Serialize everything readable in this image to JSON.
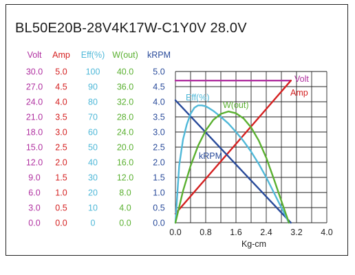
{
  "title": "BL50E20B-28V4K17W-C1Y0V   28.0V",
  "colors": {
    "volt": "#b030a0",
    "amp": "#d42020",
    "eff": "#4fb8d8",
    "wout": "#5ab030",
    "krpm": "#284a9a",
    "grid": "#222222",
    "axis_text": "#222222"
  },
  "chart_data": {
    "type": "line",
    "xlabel": "Kg-cm",
    "xlim": [
      0,
      4.0
    ],
    "x_ticks": [
      "0.0",
      "0.8",
      "1.6",
      "2.4",
      "3.2",
      "4.0"
    ],
    "axes": [
      {
        "name": "Volt",
        "color": "#b030a0",
        "ticks": [
          "0.0",
          "3.0",
          "6.0",
          "9.0",
          "12.0",
          "15.0",
          "18.0",
          "21.0",
          "24.0",
          "27.0",
          "30.0"
        ]
      },
      {
        "name": "Amp",
        "color": "#d42020",
        "ticks": [
          "0.0",
          "0.5",
          "1.0",
          "1.5",
          "2.0",
          "2.5",
          "3.0",
          "3.5",
          "4.0",
          "4.5",
          "5.0"
        ]
      },
      {
        "name": "Eff(%)",
        "color": "#4fb8d8",
        "ticks": [
          "0",
          "10",
          "20",
          "30",
          "40",
          "50",
          "60",
          "70",
          "80",
          "90",
          "100"
        ]
      },
      {
        "name": "W(out)",
        "color": "#5ab030",
        "ticks": [
          "0.0",
          "4.0",
          "8.0",
          "12.0",
          "16.0",
          "20.0",
          "24.0",
          "28.0",
          "32.0",
          "36.0",
          "40.0"
        ]
      },
      {
        "name": "kRPM",
        "color": "#284a9a",
        "ticks": [
          "0.0",
          "0.5",
          "1.0",
          "1.5",
          "2.0",
          "2.5",
          "3.0",
          "3.5",
          "4.0",
          "4.5",
          "5.0"
        ]
      }
    ],
    "series": [
      {
        "name": "Volt",
        "axis": "kRPM",
        "color": "#b030a0",
        "x": [
          0.0,
          3.05
        ],
        "y": [
          4.7,
          4.7
        ]
      },
      {
        "name": "Amp",
        "axis": "kRPM",
        "color": "#d42020",
        "x": [
          0.0,
          3.05
        ],
        "y": [
          0.3,
          4.7
        ]
      },
      {
        "name": "kRPM",
        "axis": "kRPM",
        "color": "#284a9a",
        "x": [
          0.0,
          3.05
        ],
        "y": [
          4.05,
          0.0
        ]
      },
      {
        "name": "Eff(%)",
        "axis": "kRPM",
        "color": "#4fb8d8",
        "x": [
          0.0,
          0.1,
          0.2,
          0.3,
          0.4,
          0.5,
          0.6,
          0.7,
          0.8,
          0.9,
          1.0,
          1.2,
          1.4,
          1.6,
          1.8,
          2.0,
          2.2,
          2.4,
          2.6,
          2.8,
          3.0
        ],
        "y": [
          0.0,
          1.9,
          2.75,
          3.25,
          3.6,
          3.8,
          3.88,
          3.88,
          3.85,
          3.78,
          3.7,
          3.5,
          3.28,
          3.0,
          2.7,
          2.35,
          1.95,
          1.5,
          1.0,
          0.5,
          0.0
        ]
      },
      {
        "name": "W(out)",
        "axis": "kRPM",
        "color": "#5ab030",
        "x": [
          0.0,
          0.2,
          0.4,
          0.6,
          0.8,
          1.0,
          1.2,
          1.4,
          1.6,
          1.8,
          2.0,
          2.2,
          2.4,
          2.6,
          2.8,
          3.0
        ],
        "y": [
          0.0,
          1.05,
          1.88,
          2.55,
          3.05,
          3.4,
          3.6,
          3.68,
          3.62,
          3.45,
          3.15,
          2.72,
          2.15,
          1.45,
          0.72,
          0.0
        ]
      }
    ],
    "annotations": [
      {
        "text": "Volt",
        "series": "Volt"
      },
      {
        "text": "Amp",
        "series": "Amp"
      },
      {
        "text": "Eff(%)",
        "series": "Eff(%)"
      },
      {
        "text": "W(out)",
        "series": "W(out)"
      },
      {
        "text": "kRPM",
        "series": "kRPM"
      }
    ],
    "grid": true
  }
}
